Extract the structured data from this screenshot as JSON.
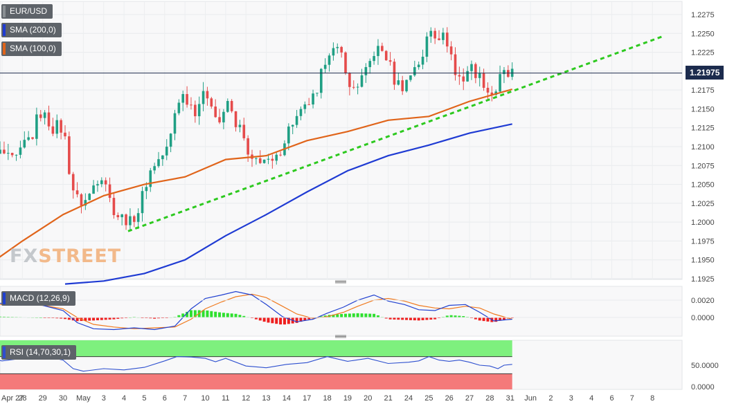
{
  "overlays": {
    "eurusd_label": "EUR/USD",
    "sma200_label": "SMA (200,0)",
    "sma100_label": "SMA (100,0)",
    "macd_label": "MACD (12,26,9)",
    "rsi_label": "RSI (14,70,30,1)",
    "watermark_a": "FX",
    "watermark_b": "STREET"
  },
  "colors": {
    "up_candle": "#1f9f84",
    "down_candle": "#e54b4b",
    "sma200": "#1f3bd3",
    "sma100": "#e0641a",
    "trendline": "#2dc91f",
    "price_line": "#1c2b4d",
    "macd_line": "#2040d0",
    "signal_line": "#f07a1e",
    "hist_up": "#2ee02e",
    "hist_down": "#ee1e1e",
    "rsi_line": "#2d4fcf",
    "rsi_overbought": "#7ef07e",
    "rsi_oversold": "#f47a7a",
    "eurusd_swatch": "#8a8f93"
  },
  "chart_data": [
    {
      "type": "candlestick",
      "title": "EUR/USD",
      "last_price": "1.21975",
      "ylim": [
        1.1915,
        1.229
      ],
      "y_ticks": [
        "1.2275",
        "1.2250",
        "1.2225",
        "1.2200",
        "1.2175",
        "1.2150",
        "1.2125",
        "1.2100",
        "1.2075",
        "1.2050",
        "1.2025",
        "1.2000",
        "1.1975",
        "1.1950",
        "1.1925"
      ],
      "x_ticks": [
        {
          "label": "Apr 27",
          "day": -4
        },
        {
          "label": "28",
          "day": -3
        },
        {
          "label": "29",
          "day": -2
        },
        {
          "label": "30",
          "day": -1
        },
        {
          "label": "May",
          "day": 0
        },
        {
          "label": "3",
          "day": 1
        },
        {
          "label": "4",
          "day": 2
        },
        {
          "label": "5",
          "day": 3
        },
        {
          "label": "6",
          "day": 4
        },
        {
          "label": "7",
          "day": 5
        },
        {
          "label": "10",
          "day": 6
        },
        {
          "label": "11",
          "day": 7
        },
        {
          "label": "12",
          "day": 8
        },
        {
          "label": "13",
          "day": 9
        },
        {
          "label": "14",
          "day": 10
        },
        {
          "label": "17",
          "day": 11
        },
        {
          "label": "18",
          "day": 12
        },
        {
          "label": "19",
          "day": 13
        },
        {
          "label": "20",
          "day": 14
        },
        {
          "label": "21",
          "day": 15
        },
        {
          "label": "24",
          "day": 16
        },
        {
          "label": "25",
          "day": 17
        },
        {
          "label": "26",
          "day": 18
        },
        {
          "label": "27",
          "day": 19
        },
        {
          "label": "28",
          "day": 20
        },
        {
          "label": "31",
          "day": 21
        },
        {
          "label": "Jun",
          "day": 22
        },
        {
          "label": "2",
          "day": 23
        },
        {
          "label": "3",
          "day": 24
        },
        {
          "label": "4",
          "day": 25
        },
        {
          "label": "6",
          "day": 26
        },
        {
          "label": "7",
          "day": 27
        },
        {
          "label": "8",
          "day": 28
        }
      ],
      "close_path": [
        [
          -5.0,
          1.2116
        ],
        [
          -4.7,
          1.2098
        ],
        [
          -4.4,
          1.2087
        ],
        [
          -4.0,
          1.2093
        ],
        [
          -3.6,
          1.2081
        ],
        [
          -3.2,
          1.2085
        ],
        [
          -2.9,
          1.2105
        ],
        [
          -2.5,
          1.2115
        ],
        [
          -2.2,
          1.2146
        ],
        [
          -1.9,
          1.214
        ],
        [
          -1.5,
          1.2124
        ],
        [
          -1.2,
          1.213
        ],
        [
          -0.9,
          1.211
        ],
        [
          -0.6,
          1.205
        ],
        [
          -0.2,
          1.2025
        ],
        [
          0.2,
          1.203
        ],
        [
          0.6,
          1.2055
        ],
        [
          1.0,
          1.2065
        ],
        [
          1.3,
          1.203
        ],
        [
          1.6,
          1.201
        ],
        [
          2.0,
          1.2005
        ],
        [
          2.3,
          1.2
        ],
        [
          2.7,
          1.2015
        ],
        [
          3.0,
          1.2045
        ],
        [
          3.4,
          1.2075
        ],
        [
          3.8,
          1.2085
        ],
        [
          4.2,
          1.21
        ],
        [
          4.6,
          1.216
        ],
        [
          4.9,
          1.2168
        ],
        [
          5.2,
          1.216
        ],
        [
          5.5,
          1.2148
        ],
        [
          5.8,
          1.2165
        ],
        [
          6.2,
          1.217
        ],
        [
          6.5,
          1.214
        ],
        [
          6.8,
          1.213
        ],
        [
          7.1,
          1.216
        ],
        [
          7.4,
          1.2135
        ],
        [
          7.8,
          1.212
        ],
        [
          8.2,
          1.2075
        ],
        [
          8.5,
          1.2082
        ],
        [
          8.8,
          1.2085
        ],
        [
          9.2,
          1.2075
        ],
        [
          9.5,
          1.2083
        ],
        [
          9.9,
          1.211
        ],
        [
          10.2,
          1.213
        ],
        [
          10.6,
          1.214
        ],
        [
          10.9,
          1.215
        ],
        [
          11.2,
          1.2163
        ],
        [
          11.5,
          1.2165
        ],
        [
          11.8,
          1.221
        ],
        [
          12.1,
          1.2228
        ],
        [
          12.5,
          1.2225
        ],
        [
          12.8,
          1.222
        ],
        [
          13.1,
          1.2175
        ],
        [
          13.5,
          1.2183
        ],
        [
          13.9,
          1.2198
        ],
        [
          14.3,
          1.2225
        ],
        [
          14.6,
          1.223
        ],
        [
          15.0,
          1.2215
        ],
        [
          15.3,
          1.2188
        ],
        [
          15.7,
          1.218
        ],
        [
          16.0,
          1.219
        ],
        [
          16.3,
          1.2208
        ],
        [
          16.7,
          1.2215
        ],
        [
          17.0,
          1.226
        ],
        [
          17.3,
          1.225
        ],
        [
          17.7,
          1.2245
        ],
        [
          18.0,
          1.2235
        ],
        [
          18.3,
          1.2195
        ],
        [
          18.7,
          1.219
        ],
        [
          19.0,
          1.2208
        ],
        [
          19.4,
          1.2195
        ],
        [
          19.7,
          1.2185
        ],
        [
          20.0,
          1.2168
        ],
        [
          20.3,
          1.2175
        ],
        [
          20.6,
          1.2198
        ],
        [
          20.9,
          1.2193
        ],
        [
          21.1,
          1.2198
        ]
      ],
      "series": [
        {
          "name": "SMA (200,0)",
          "points": [
            [
              -0.9,
              1.1918
            ],
            [
              1.0,
              1.1922
            ],
            [
              3.0,
              1.1932
            ],
            [
              5.0,
              1.195
            ],
            [
              7.0,
              1.1982
            ],
            [
              9.0,
              1.201
            ],
            [
              11.0,
              1.204
            ],
            [
              13.0,
              1.2068
            ],
            [
              15.0,
              1.2088
            ],
            [
              17.0,
              1.2102
            ],
            [
              19.0,
              1.2118
            ],
            [
              21.1,
              1.213
            ]
          ]
        },
        {
          "name": "SMA (100,0)",
          "points": [
            [
              -5.0,
              1.1937
            ],
            [
              -3.0,
              1.1975
            ],
            [
              -1.0,
              1.201
            ],
            [
              1.0,
              1.2035
            ],
            [
              3.0,
              1.205
            ],
            [
              5.0,
              1.206
            ],
            [
              7.0,
              1.2083
            ],
            [
              9.0,
              1.2088
            ],
            [
              11.0,
              1.2108
            ],
            [
              13.0,
              1.212
            ],
            [
              15.0,
              1.2135
            ],
            [
              17.0,
              1.214
            ],
            [
              19.0,
              1.216
            ],
            [
              21.1,
              1.2176
            ]
          ]
        },
        {
          "name": "Trendline",
          "points": [
            [
              2.2,
              1.1988
            ],
            [
              28.5,
              1.2246
            ]
          ]
        }
      ]
    },
    {
      "type": "macd",
      "title": "MACD (12,26,9)",
      "ylim": [
        -0.0018,
        0.0035
      ],
      "y_ticks": [
        "0.0020",
        "0.0000"
      ],
      "macd": [
        [
          -5.0,
          0.0017
        ],
        [
          -3.5,
          0.0016
        ],
        [
          -2.0,
          0.0014
        ],
        [
          -1.0,
          0.0008
        ],
        [
          -0.3,
          -0.0006
        ],
        [
          0.5,
          -0.0013
        ],
        [
          1.5,
          -0.0014
        ],
        [
          2.5,
          -0.0012
        ],
        [
          3.5,
          -0.0014
        ],
        [
          4.5,
          -0.001
        ],
        [
          5.3,
          0.001
        ],
        [
          6.0,
          0.0022
        ],
        [
          6.8,
          0.0026
        ],
        [
          7.5,
          0.003
        ],
        [
          8.3,
          0.0026
        ],
        [
          9.0,
          0.0015
        ],
        [
          9.8,
          0.0001
        ],
        [
          10.5,
          -0.0005
        ],
        [
          11.3,
          -0.0002
        ],
        [
          12.0,
          0.0005
        ],
        [
          12.8,
          0.0012
        ],
        [
          13.5,
          0.002
        ],
        [
          14.3,
          0.0026
        ],
        [
          15.0,
          0.0019
        ],
        [
          15.8,
          0.0015
        ],
        [
          16.5,
          0.0009
        ],
        [
          17.3,
          0.0008
        ],
        [
          18.0,
          0.0014
        ],
        [
          18.8,
          0.0015
        ],
        [
          19.5,
          0.0006
        ],
        [
          20.2,
          -0.0004
        ],
        [
          21.1,
          -0.0002
        ]
      ],
      "signal": [
        [
          -5.0,
          0.0015
        ],
        [
          -3.5,
          0.0015
        ],
        [
          -2.0,
          0.0014
        ],
        [
          -1.0,
          0.001
        ],
        [
          -0.3,
          0.0
        ],
        [
          0.5,
          -0.0008
        ],
        [
          1.5,
          -0.0011
        ],
        [
          2.5,
          -0.0013
        ],
        [
          3.5,
          -0.0012
        ],
        [
          4.5,
          -0.0011
        ],
        [
          5.3,
          -0.0002
        ],
        [
          6.0,
          0.001
        ],
        [
          6.8,
          0.0018
        ],
        [
          7.5,
          0.0024
        ],
        [
          8.3,
          0.0027
        ],
        [
          9.0,
          0.0023
        ],
        [
          9.8,
          0.0013
        ],
        [
          10.5,
          0.0004
        ],
        [
          11.3,
          -0.0001
        ],
        [
          12.0,
          0.0001
        ],
        [
          12.8,
          0.0006
        ],
        [
          13.5,
          0.0013
        ],
        [
          14.3,
          0.002
        ],
        [
          15.0,
          0.0022
        ],
        [
          15.8,
          0.0019
        ],
        [
          16.5,
          0.0014
        ],
        [
          17.3,
          0.0011
        ],
        [
          18.0,
          0.001
        ],
        [
          18.8,
          0.0013
        ],
        [
          19.5,
          0.0011
        ],
        [
          20.2,
          0.0004
        ],
        [
          21.1,
          -0.0002
        ]
      ]
    },
    {
      "type": "line",
      "title": "RSI (14,70,30,1)",
      "ylim": [
        0,
        100
      ],
      "y_ticks": [
        "50.0000",
        "0.0000"
      ],
      "overbought": 70,
      "oversold": 30,
      "rsi": [
        [
          -5.0,
          68
        ],
        [
          -4.0,
          60
        ],
        [
          -3.0,
          66
        ],
        [
          -2.0,
          72
        ],
        [
          -1.0,
          62
        ],
        [
          -0.5,
          42
        ],
        [
          0.0,
          36
        ],
        [
          1.0,
          42
        ],
        [
          2.0,
          39
        ],
        [
          3.0,
          45
        ],
        [
          4.0,
          60
        ],
        [
          4.6,
          70
        ],
        [
          5.3,
          69
        ],
        [
          6.0,
          66
        ],
        [
          6.5,
          58
        ],
        [
          7.0,
          66
        ],
        [
          8.0,
          48
        ],
        [
          9.0,
          44
        ],
        [
          10.0,
          52
        ],
        [
          11.0,
          56
        ],
        [
          12.0,
          70
        ],
        [
          13.0,
          59
        ],
        [
          14.0,
          66
        ],
        [
          15.0,
          54
        ],
        [
          16.0,
          57
        ],
        [
          16.5,
          60
        ],
        [
          17.0,
          70
        ],
        [
          17.5,
          62
        ],
        [
          18.0,
          59
        ],
        [
          18.5,
          62
        ],
        [
          19.0,
          57
        ],
        [
          19.5,
          50
        ],
        [
          20.0,
          48
        ],
        [
          20.4,
          42
        ],
        [
          20.7,
          50
        ],
        [
          21.1,
          52
        ]
      ]
    }
  ]
}
